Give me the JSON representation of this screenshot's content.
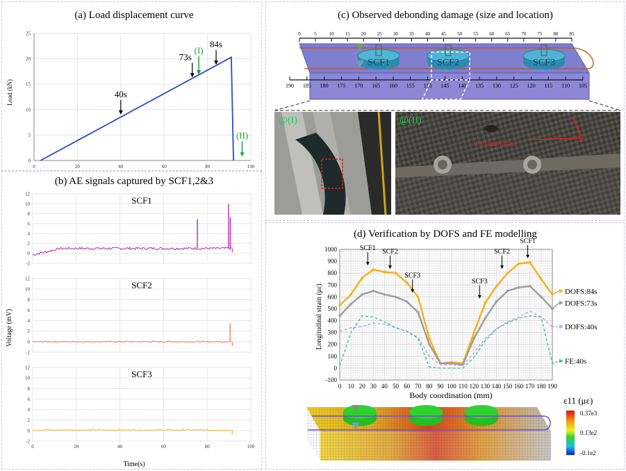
{
  "panels": {
    "a": {
      "title": "(a) Load displacement curve"
    },
    "b": {
      "title": "(b) AE signals captured by SCF1,2&3"
    },
    "c": {
      "title": "(c) Observed debonding damage (size and location)"
    },
    "d": {
      "title": "(d) Verification by DOFS and FE modelling"
    }
  },
  "chart_data": [
    {
      "id": "a",
      "type": "line",
      "title": "(a) Load displacement curve",
      "ylabel": "Load (kN)",
      "xlabel": "",
      "xlim": [
        0,
        100
      ],
      "ylim": [
        0,
        25
      ],
      "xticks": [
        "0",
        "20",
        "40",
        "60",
        "80",
        "100"
      ],
      "yticks": [
        "0",
        "5",
        "10",
        "15",
        "20",
        "25"
      ],
      "color": "#2a49c8",
      "series": [
        {
          "x": [
            3,
            91,
            91,
            92
          ],
          "y": [
            0,
            20.3,
            20.3,
            0
          ]
        }
      ],
      "annotations": [
        {
          "text": "40s",
          "x": 40,
          "y": 8.9,
          "color": "#000000"
        },
        {
          "text": "73s",
          "x": 73,
          "y": 16.2,
          "color": "#000000"
        },
        {
          "text": "84s",
          "x": 84,
          "y": 18.7,
          "color": "#000000"
        },
        {
          "text": "(I)",
          "x": 76,
          "y": 16.4,
          "color": "#16a34a"
        },
        {
          "text": "(II)",
          "x": 96,
          "y": 0.5,
          "color": "#16a34a"
        }
      ]
    },
    {
      "id": "b",
      "type": "line",
      "title": "(b) AE signals captured by SCF1,2&3",
      "ylabel": "Voltage (mV)",
      "xlabel": "Time(s)",
      "xlim": [
        0,
        100
      ],
      "xticks": [
        "0",
        "20",
        "40",
        "60",
        "80",
        "100"
      ],
      "subplots": [
        {
          "name": "SCF1",
          "color": "#c026a8",
          "ylim": [
            -2,
            12
          ],
          "yticks": [
            "-2",
            "0",
            "2",
            "4",
            "6",
            "8",
            "10",
            "12"
          ],
          "baseline": 1.0,
          "spikes": [
            {
              "x": 75.5,
              "y": 6.9
            },
            {
              "x": 89.8,
              "y": 9.9
            },
            {
              "x": 90.6,
              "y": 7.3
            }
          ]
        },
        {
          "name": "SCF2",
          "color": "#ee7b56",
          "ylim": [
            -2,
            12
          ],
          "yticks": [
            "-2",
            "0",
            "2",
            "4",
            "6",
            "8",
            "10",
            "12"
          ],
          "baseline": 0.0,
          "spikes": [
            {
              "x": 90.5,
              "y": 3.5
            }
          ]
        },
        {
          "name": "SCF3",
          "color": "#f2b233",
          "ylim": [
            -2,
            12
          ],
          "yticks": [
            "-2",
            "0",
            "2",
            "4",
            "6",
            "8",
            "10",
            "12"
          ],
          "baseline": 0.1,
          "spikes": []
        }
      ]
    },
    {
      "id": "d",
      "type": "line",
      "title": "(d) Verification by DOFS and FE modelling",
      "xlabel": "Body coordination (mm)",
      "ylabel": "Longitudinal strain (με)",
      "xlim": [
        0,
        190
      ],
      "ylim": [
        -100,
        1000
      ],
      "xticks": [
        "0",
        "10",
        "20",
        "30",
        "40",
        "50",
        "60",
        "70",
        "80",
        "90",
        "100",
        "110",
        "120",
        "130",
        "140",
        "150",
        "160",
        "170",
        "180",
        "190"
      ],
      "yticks": [
        "-100",
        "0",
        "100",
        "200",
        "300",
        "400",
        "500",
        "600",
        "700",
        "800",
        "900",
        "1000"
      ],
      "x": [
        0,
        10,
        20,
        30,
        40,
        50,
        60,
        70,
        80,
        90,
        100,
        110,
        120,
        130,
        140,
        150,
        160,
        170,
        180,
        190
      ],
      "series": [
        {
          "name": "DOFS:84s",
          "color": "#f5b014",
          "style": "solid",
          "values": [
            530,
            620,
            760,
            830,
            810,
            800,
            720,
            600,
            250,
            40,
            50,
            40,
            300,
            550,
            690,
            800,
            880,
            890,
            750,
            620
          ]
        },
        {
          "name": "DOFS:73s",
          "color": "#9c9c9c",
          "style": "solid",
          "values": [
            440,
            540,
            620,
            650,
            620,
            600,
            560,
            470,
            200,
            40,
            40,
            30,
            250,
            420,
            560,
            650,
            680,
            690,
            600,
            500
          ]
        },
        {
          "name": "DOFS:40s",
          "color": "#b8a0e8",
          "style": "dashed",
          "values": [
            310,
            340,
            350,
            380,
            370,
            340,
            310,
            260,
            100,
            30,
            30,
            20,
            130,
            250,
            330,
            390,
            430,
            480,
            430,
            350
          ]
        },
        {
          "name": "FE:40s",
          "color": "#3cbfa0",
          "style": "dashed",
          "values": [
            20,
            300,
            440,
            430,
            390,
            340,
            310,
            250,
            10,
            0,
            0,
            0,
            90,
            230,
            330,
            380,
            420,
            440,
            430,
            40
          ]
        }
      ],
      "annotations": [
        {
          "text": "SCF1",
          "x": 25
        },
        {
          "text": "SCF2",
          "x": 45
        },
        {
          "text": "SCF3",
          "x": 65
        },
        {
          "text": "SCF3",
          "x": 125
        },
        {
          "text": "SCF2",
          "x": 145
        },
        {
          "text": "SCF1",
          "x": 168
        }
      ]
    }
  ],
  "schematic": {
    "top_ruler": [
      "0",
      "5",
      "10",
      "15",
      "20",
      "25",
      "30",
      "35",
      "40",
      "45",
      "50",
      "55",
      "60",
      "65",
      "70",
      "75",
      "80",
      "85"
    ],
    "bottom_ruler": [
      "190",
      "185",
      "180",
      "175",
      "170",
      "165",
      "160",
      "155",
      "150",
      "145",
      "140",
      "135",
      "130",
      "125",
      "120",
      "115",
      "110",
      "105"
    ],
    "sensors": [
      "SCF1",
      "SCF2",
      "SCF3"
    ]
  },
  "photos": {
    "i": {
      "label": "@(I)"
    },
    "ii": {
      "label": "@(II)",
      "annotation": "Delamination"
    }
  },
  "fe_legend": {
    "title": "ε11 (με)",
    "max": "0.37e3",
    "mid": "0.13e2",
    "min": "-0.1e2"
  }
}
